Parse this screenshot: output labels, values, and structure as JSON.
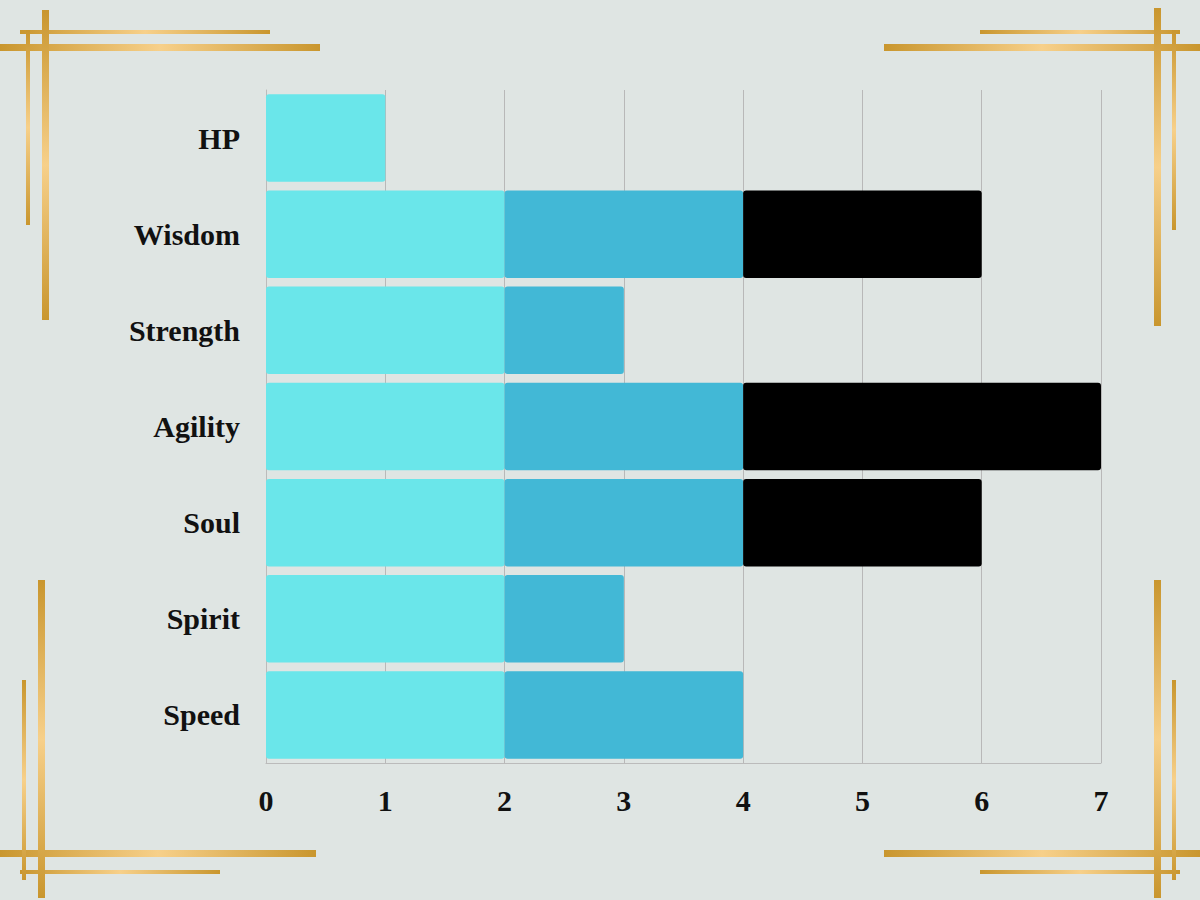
{
  "chart_data": {
    "type": "bar",
    "orientation": "horizontal",
    "stacked": true,
    "grid": true,
    "categories": [
      "HP",
      "Wisdom",
      "Strength",
      "Agility",
      "Soul",
      "Spirit",
      "Speed"
    ],
    "series": [
      {
        "color": "#6ae6ea",
        "values": [
          1,
          2,
          2,
          2,
          2,
          2,
          2
        ]
      },
      {
        "color": "#42b8d6",
        "values": [
          0,
          2,
          1,
          2,
          2,
          1,
          2
        ]
      },
      {
        "color": "#000000",
        "values": [
          0,
          2,
          0,
          3,
          2,
          0,
          0
        ]
      }
    ],
    "xlim": [
      0,
      7
    ],
    "xticks": [
      0,
      1,
      2,
      3,
      4,
      5,
      6,
      7
    ]
  }
}
